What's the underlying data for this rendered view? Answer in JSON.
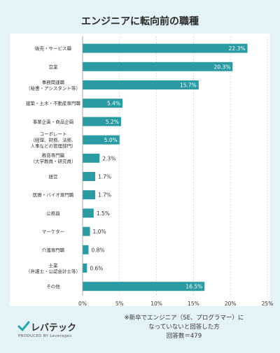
{
  "chart_data": {
    "type": "bar",
    "orientation": "horizontal",
    "title": "エンジニアに転向前の職種",
    "categories": [
      [
        "販売・サービス職"
      ],
      [
        "営業"
      ],
      [
        "事務関連職",
        "（秘書・アシスタント等）"
      ],
      [
        "建築・土木・不動産専門職"
      ],
      [
        "事業企画・商品企画"
      ],
      [
        "コーポレート",
        "（経理、財務、法務、",
        "人事などの管理部門）"
      ],
      [
        "教育専門職",
        "（大学教員・研究員）"
      ],
      [
        "経営"
      ],
      [
        "医療・バイオ専門職"
      ],
      [
        "公務員"
      ],
      [
        "マーケター"
      ],
      [
        "介護専門職"
      ],
      [
        "士業",
        "（弁護士・公認会計士等）"
      ],
      [
        "その他"
      ]
    ],
    "values": [
      22.3,
      20.3,
      15.7,
      5.4,
      5.2,
      5.0,
      2.3,
      1.7,
      1.7,
      1.5,
      1.0,
      0.8,
      0.6,
      16.5
    ],
    "value_labels": [
      "22.3%",
      "20.3%",
      "15.7%",
      "5.4%",
      "5.2%",
      "5.0%",
      "2.3%",
      "1.7%",
      "1.7%",
      "1.5%",
      "1.0%",
      "0.8%",
      "0.6%",
      "16.5%"
    ],
    "xlim": [
      0,
      25
    ],
    "xticks": [
      0,
      5,
      10,
      15,
      20,
      25
    ],
    "xtick_labels": [
      "0%",
      "5%",
      "10%",
      "15%",
      "20%",
      "25%"
    ],
    "bar_color": "#2a9aa3",
    "grid": true
  },
  "footnote": {
    "line1": "※新卒でエンジニア（SE、プログラマー）に",
    "line2": "なっていないと回答した方",
    "line3": "回答数＝479"
  },
  "logo": {
    "name": "レバテック",
    "tagline": "PRODUCED BY Leverages",
    "mark_icon": "check-arrow-icon"
  },
  "colors": {
    "background": "#e3f3f7",
    "panel": "#ffffff",
    "bar": "#2a9aa3",
    "logo_accent": "#2aa7b0"
  }
}
